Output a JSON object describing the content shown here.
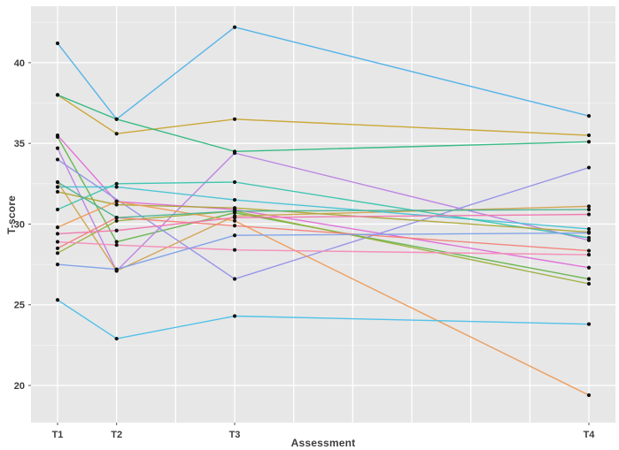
{
  "figure": {
    "xlabel": "Assessment",
    "ylabel": "T-score"
  },
  "chart_data": {
    "type": "line",
    "title": "",
    "xlabel": "Assessment",
    "ylabel": "T-score",
    "legend": "none",
    "panel_bg": "#e7e7e7",
    "grid_major_color": "#ffffff",
    "grid_minor_color": "rgba(255,255,255,0.55)",
    "tick_text_color": "#3d3d3d",
    "point_color": "#121212",
    "x_tick_labels": [
      "T1",
      "T2",
      "T3",
      "T4"
    ],
    "x_tick_positions": [
      0,
      1,
      3,
      9
    ],
    "x_grid_positions": [
      0,
      1,
      2,
      3,
      4,
      5,
      6,
      7,
      8,
      9
    ],
    "xlim": [
      -0.45,
      9.45
    ],
    "y_tick_labels": [
      "20",
      "25",
      "30",
      "35",
      "40"
    ],
    "y_ticks": [
      20,
      25,
      30,
      35,
      40
    ],
    "y_minor_ticks": [
      22.5,
      27.5,
      32.5,
      37.5,
      42.5
    ],
    "ylim": [
      17.7,
      43.5
    ],
    "x": [
      0,
      1,
      3,
      9
    ],
    "series": [
      {
        "id": "subject-01",
        "color": "#4fb2e8",
        "values": [
          41.2,
          36.5,
          42.2,
          36.7
        ]
      },
      {
        "id": "subject-02",
        "color": "#c9a42e",
        "values": [
          38.0,
          35.6,
          36.5,
          35.5
        ]
      },
      {
        "id": "subject-03",
        "color": "#2eb87e",
        "values": [
          38.0,
          36.5,
          34.5,
          35.1
        ]
      },
      {
        "id": "subject-04",
        "color": "#e06bd9",
        "values": [
          35.5,
          31.4,
          30.9,
          27.3
        ]
      },
      {
        "id": "subject-05",
        "color": "#63b54a",
        "values": [
          35.4,
          28.9,
          30.7,
          26.6
        ]
      },
      {
        "id": "subject-06",
        "color": "#bc7fe4",
        "values": [
          34.7,
          27.1,
          34.4,
          29.0
        ]
      },
      {
        "id": "subject-07",
        "color": "#9590e8",
        "values": [
          34.0,
          null,
          26.6,
          33.5
        ]
      },
      {
        "id": "subject-08",
        "color": "#d2a14f",
        "values": [
          32.6,
          27.1,
          30.5,
          31.1
        ]
      },
      {
        "id": "subject-09",
        "color": "#9bb03c",
        "values": [
          28.2,
          30.2,
          30.8,
          26.3
        ]
      },
      {
        "id": "subject-10",
        "color": "#45c3d4",
        "values": [
          32.3,
          32.3,
          31.5,
          29.7
        ]
      },
      {
        "id": "subject-11",
        "color": "#3bc4ae",
        "values": [
          30.9,
          32.5,
          32.6,
          29.15
        ]
      },
      {
        "id": "subject-12",
        "color": "#aba636",
        "values": [
          32.0,
          31.2,
          31.0,
          29.5
        ]
      },
      {
        "id": "subject-13",
        "color": "#ee9a55",
        "values": [
          29.8,
          31.4,
          30.2,
          19.4
        ]
      },
      {
        "id": "subject-14",
        "color": "#f28077",
        "values": [
          28.5,
          30.4,
          29.9,
          28.35
        ]
      },
      {
        "id": "subject-15",
        "color": "#f48bb5",
        "values": [
          28.9,
          28.7,
          28.4,
          28.1
        ]
      },
      {
        "id": "subject-16",
        "color": "#f075ae",
        "values": [
          29.4,
          29.6,
          30.4,
          30.6
        ]
      },
      {
        "id": "subject-17",
        "color": "#7da0e8",
        "values": [
          27.5,
          27.2,
          29.3,
          29.45
        ]
      },
      {
        "id": "subject-18",
        "color": "#49c0e8",
        "values": [
          25.3,
          22.9,
          24.3,
          23.8
        ]
      },
      {
        "id": "subject-19",
        "color": "#4cb392",
        "values": [
          32.6,
          30.4,
          30.8,
          30.9
        ]
      }
    ]
  }
}
